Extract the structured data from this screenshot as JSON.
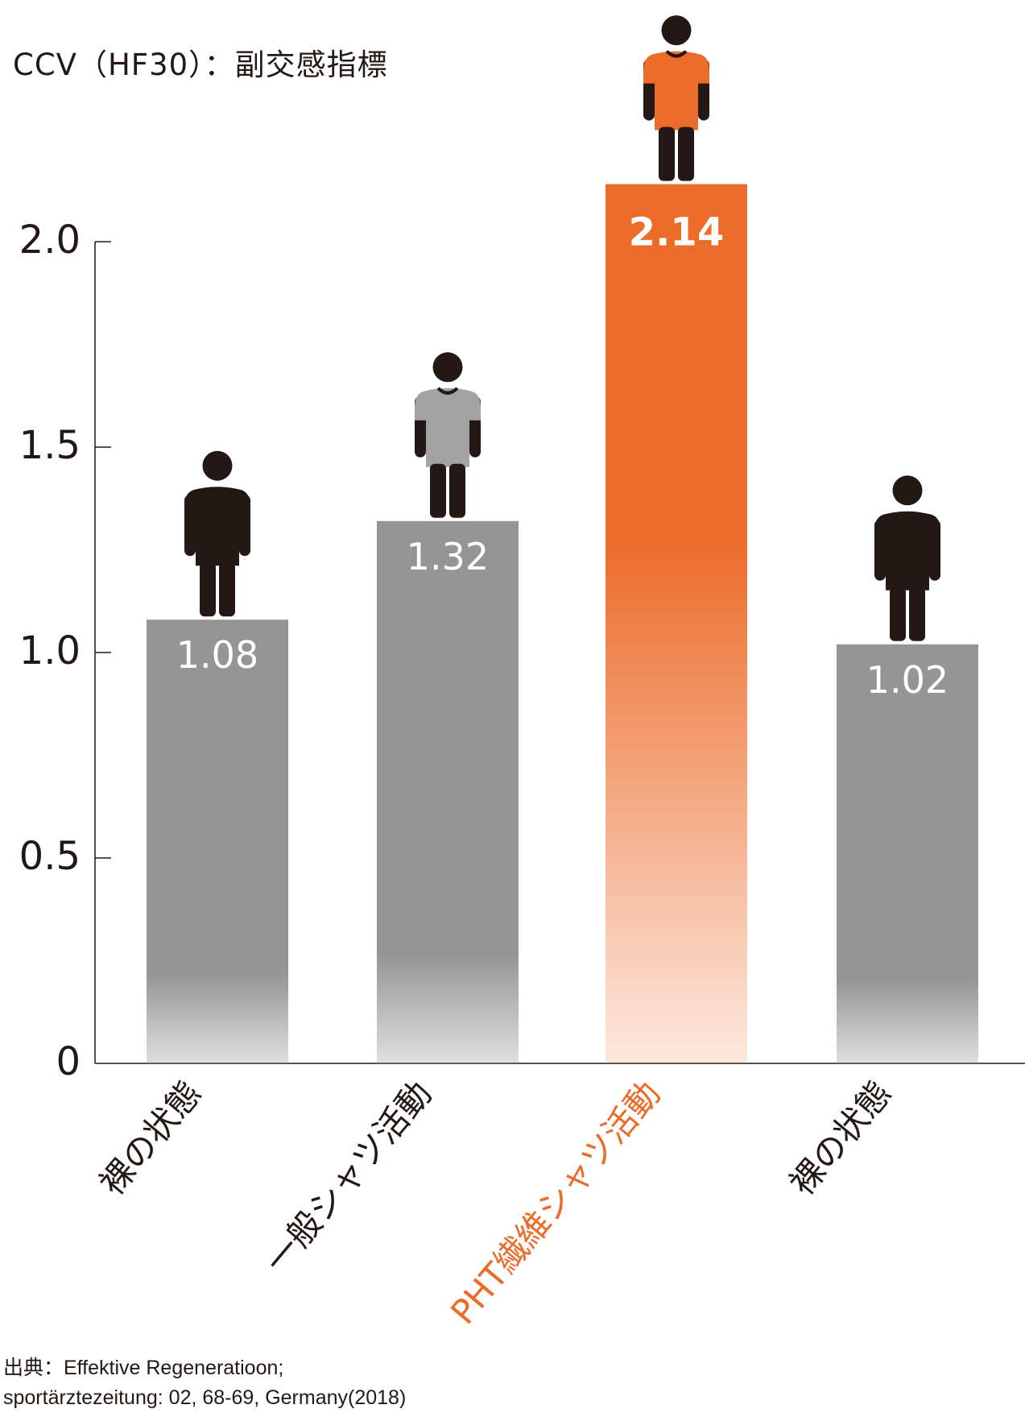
{
  "chart_data": {
    "type": "bar",
    "title": "CCV（HF30）：副交感指標",
    "categories": [
      "裸の状態",
      "一般シャツ活動",
      "PHT繊維シャツ活動",
      "裸の状態"
    ],
    "values": [
      1.08,
      1.32,
      2.14,
      1.02
    ],
    "value_labels": [
      "1.08",
      "1.32",
      "2.14",
      "1.02"
    ],
    "highlight_index": 2,
    "yticks": [
      0,
      0.5,
      1.0,
      1.5,
      2.0
    ],
    "ytick_labels": [
      "0",
      "0.5",
      "1.0",
      "1.5",
      "2.0"
    ],
    "ylim": [
      0,
      2.0
    ],
    "xlabel": "",
    "ylabel": "",
    "grid": false,
    "legend": "none",
    "figures": [
      "bare",
      "gray-shirt",
      "orange-shirt",
      "bare"
    ]
  },
  "source": {
    "line1": "出典：Effektive Regeneratioon;",
    "line2": "sportärztezeitung: 02, 68-69, Germany(2018)"
  },
  "colors": {
    "bar_gray": "#959595",
    "bar_orange": "#ec6b29",
    "axis": "#231815",
    "figure": "#231815",
    "gray_shirt": "#a3a3a3",
    "orange_shirt": "#ec6b29",
    "label_white": "#ffffff"
  }
}
